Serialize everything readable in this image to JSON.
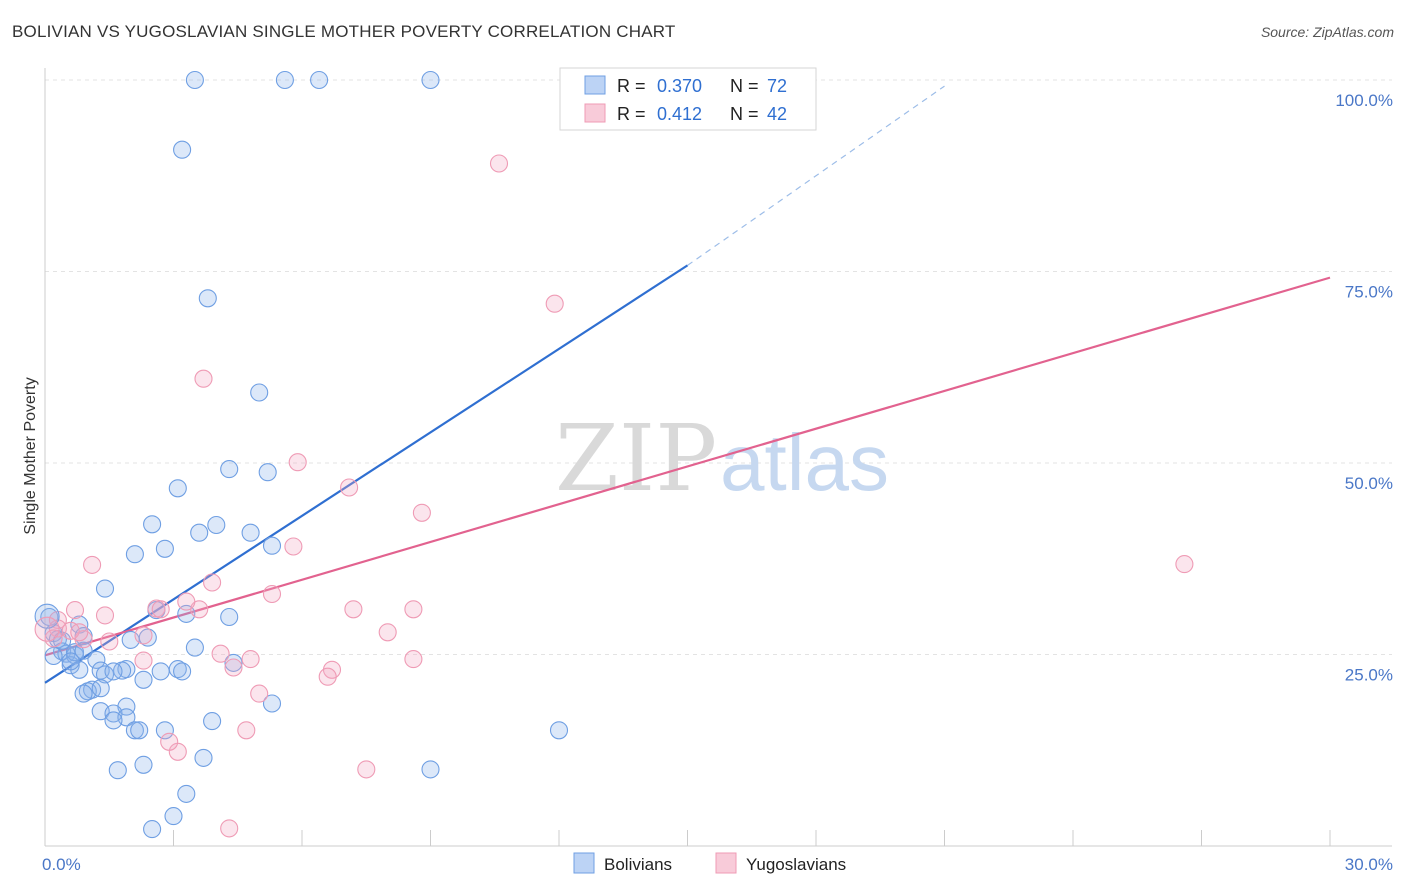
{
  "header": {
    "title": "BOLIVIAN VS YUGOSLAVIAN SINGLE MOTHER POVERTY CORRELATION CHART",
    "source": "Source: ZipAtlas.com"
  },
  "watermark": {
    "zip": "ZIP",
    "atlas": "atlas"
  },
  "legend": {
    "r_label": "R =",
    "n_label": "N =",
    "entries": [
      {
        "r": "0.370",
        "n": "72",
        "color": "#6f9fe3"
      },
      {
        "r": "0.412",
        "n": "42",
        "color": "#ef9bb5"
      }
    ]
  },
  "chart_data": {
    "type": "scatter",
    "title": "BOLIVIAN VS YUGOSLAVIAN SINGLE MOTHER POVERTY CORRELATION CHART",
    "xlabel": "",
    "ylabel": "Single Mother Poverty",
    "xlim": [
      0,
      30
    ],
    "ylim": [
      0,
      100
    ],
    "x_tick_labels": [
      "0.0%",
      "30.0%"
    ],
    "y_tick_labels": [
      "25.0%",
      "50.0%",
      "75.0%",
      "100.0%"
    ],
    "y_ticks": [
      25,
      50,
      75,
      100
    ],
    "grid": true,
    "legend_position": "top-center",
    "series": [
      {
        "name": "Bolivians",
        "color": "#6f9fe3",
        "line_color": "#2f6fd1",
        "points": [
          [
            3.5,
            100
          ],
          [
            5.6,
            100
          ],
          [
            6.4,
            100
          ],
          [
            9.0,
            100
          ],
          [
            3.2,
            90.9
          ],
          [
            3.8,
            71.5
          ],
          [
            5.0,
            59.2
          ],
          [
            4.3,
            49.2
          ],
          [
            5.2,
            48.8
          ],
          [
            3.1,
            46.7
          ],
          [
            2.5,
            42
          ],
          [
            3.6,
            40.9
          ],
          [
            4.0,
            41.9
          ],
          [
            4.8,
            40.9
          ],
          [
            5.3,
            39.2
          ],
          [
            2.8,
            38.8
          ],
          [
            2.1,
            38.1
          ],
          [
            1.4,
            33.6
          ],
          [
            2.6,
            30.8
          ],
          [
            3.3,
            30.3
          ],
          [
            4.3,
            29.9
          ],
          [
            0.1,
            29.9
          ],
          [
            0.2,
            27.8
          ],
          [
            0.8,
            28.9
          ],
          [
            0.9,
            27.4
          ],
          [
            0.3,
            27.0
          ],
          [
            2.0,
            26.9
          ],
          [
            2.4,
            27.2
          ],
          [
            3.5,
            25.9
          ],
          [
            0.4,
            25.4
          ],
          [
            0.5,
            25.1
          ],
          [
            0.2,
            24.8
          ],
          [
            0.7,
            24.9
          ],
          [
            1.2,
            24.3
          ],
          [
            0.6,
            23.6
          ],
          [
            0.8,
            23.0
          ],
          [
            1.9,
            23.1
          ],
          [
            1.8,
            22.9
          ],
          [
            2.7,
            22.8
          ],
          [
            3.1,
            23.1
          ],
          [
            1.3,
            22.9
          ],
          [
            1.4,
            22.4
          ],
          [
            4.4,
            23.9
          ],
          [
            2.3,
            21.7
          ],
          [
            1.1,
            20.4
          ],
          [
            1.0,
            20.2
          ],
          [
            0.9,
            19.9
          ],
          [
            1.9,
            18.2
          ],
          [
            1.3,
            17.6
          ],
          [
            1.6,
            17.3
          ],
          [
            1.9,
            16.8
          ],
          [
            1.6,
            16.4
          ],
          [
            3.9,
            16.3
          ],
          [
            5.3,
            18.6
          ],
          [
            2.1,
            15.1
          ],
          [
            2.2,
            15.1
          ],
          [
            2.8,
            15.1
          ],
          [
            12.0,
            15.1
          ],
          [
            3.7,
            11.5
          ],
          [
            2.3,
            10.6
          ],
          [
            1.7,
            9.9
          ],
          [
            9.0,
            10.0
          ],
          [
            3.3,
            6.8
          ],
          [
            3.0,
            3.9
          ],
          [
            2.5,
            2.2
          ],
          [
            1.3,
            20.6
          ],
          [
            0.7,
            25.3
          ],
          [
            0.4,
            26.8
          ],
          [
            0.9,
            25.5
          ],
          [
            1.6,
            22.8
          ],
          [
            3.2,
            22.8
          ],
          [
            0.6,
            24.1
          ]
        ],
        "trend_start": [
          0,
          21.3
        ],
        "trend_end": [
          15,
          75.8
        ],
        "trend_extrapolated_end": [
          21,
          99.2
        ]
      },
      {
        "name": "Yugoslavians",
        "color": "#ef9bb5",
        "line_color": "#e2628f",
        "points": [
          [
            13.4,
            100
          ],
          [
            10.6,
            89.1
          ],
          [
            11.9,
            70.8
          ],
          [
            3.7,
            61.0
          ],
          [
            5.9,
            50.1
          ],
          [
            7.1,
            46.8
          ],
          [
            8.8,
            43.5
          ],
          [
            1.1,
            36.7
          ],
          [
            5.8,
            39.1
          ],
          [
            3.9,
            34.4
          ],
          [
            5.3,
            32.9
          ],
          [
            26.6,
            36.8
          ],
          [
            0.3,
            29.5
          ],
          [
            1.4,
            30.1
          ],
          [
            0.7,
            30.8
          ],
          [
            2.6,
            31.0
          ],
          [
            2.7,
            30.9
          ],
          [
            3.6,
            30.9
          ],
          [
            7.2,
            30.9
          ],
          [
            8.6,
            30.9
          ],
          [
            3.3,
            31.9
          ],
          [
            0.3,
            28.4
          ],
          [
            0.2,
            27.1
          ],
          [
            8.0,
            27.9
          ],
          [
            0.9,
            27.0
          ],
          [
            1.5,
            26.7
          ],
          [
            2.3,
            27.5
          ],
          [
            4.1,
            25.1
          ],
          [
            4.8,
            24.4
          ],
          [
            8.6,
            24.4
          ],
          [
            2.3,
            24.2
          ],
          [
            4.4,
            23.3
          ],
          [
            6.7,
            23.0
          ],
          [
            6.6,
            22.1
          ],
          [
            5.0,
            19.9
          ],
          [
            4.7,
            15.1
          ],
          [
            3.1,
            12.3
          ],
          [
            2.9,
            13.6
          ],
          [
            7.5,
            10.0
          ],
          [
            4.3,
            2.3
          ],
          [
            0.6,
            28.1
          ],
          [
            0.8,
            27.9
          ]
        ],
        "trend_start": [
          0,
          24.9
        ],
        "trend_end": [
          30,
          74.2
        ]
      }
    ]
  },
  "bottom_legend": [
    "Bolivians",
    "Yugoslavians"
  ]
}
